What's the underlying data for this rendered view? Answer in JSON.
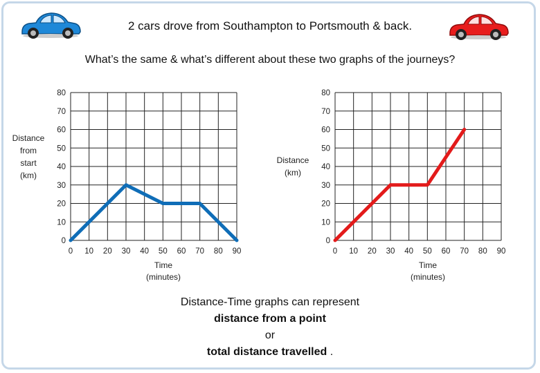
{
  "title": "2 cars drove from Southampton to Portsmouth & back.",
  "question": "What’s the same & what’s different about these two graphs of the journeys?",
  "note": {
    "line1": "Distance-Time graphs can represent",
    "line2": "distance from a point",
    "line3": "or",
    "line4": "total distance travelled",
    "line4_end": " ."
  },
  "icons": {
    "left_car": "blue-car-icon",
    "right_car": "red-car-icon"
  },
  "colors": {
    "left_line": "#0f6db7",
    "right_line": "#e31b1b",
    "border": "#c5d7e8"
  },
  "chart_data": [
    {
      "type": "line",
      "ylabel": [
        "Distance",
        "from",
        "start",
        "(km)"
      ],
      "xlabel": [
        "Time",
        "(minutes)"
      ],
      "xlim": [
        0,
        90
      ],
      "ylim": [
        0,
        80
      ],
      "xticks": [
        0,
        10,
        20,
        30,
        40,
        50,
        60,
        70,
        80,
        90
      ],
      "yticks": [
        0,
        10,
        20,
        30,
        40,
        50,
        60,
        70,
        80
      ],
      "grid": true,
      "series": [
        {
          "color": "#0f6db7",
          "x": [
            0,
            30,
            50,
            70,
            90
          ],
          "y": [
            0,
            30,
            20,
            20,
            0
          ]
        }
      ]
    },
    {
      "type": "line",
      "ylabel": [
        "Distance",
        "(km)"
      ],
      "xlabel": [
        "Time",
        "(minutes)"
      ],
      "xlim": [
        0,
        90
      ],
      "ylim": [
        0,
        80
      ],
      "xticks": [
        0,
        10,
        20,
        30,
        40,
        50,
        60,
        70,
        80,
        90
      ],
      "yticks": [
        0,
        10,
        20,
        30,
        40,
        50,
        60,
        70,
        80
      ],
      "grid": true,
      "series": [
        {
          "color": "#e31b1b",
          "x": [
            0,
            30,
            50,
            70
          ],
          "y": [
            0,
            30,
            30,
            60
          ]
        }
      ]
    }
  ]
}
